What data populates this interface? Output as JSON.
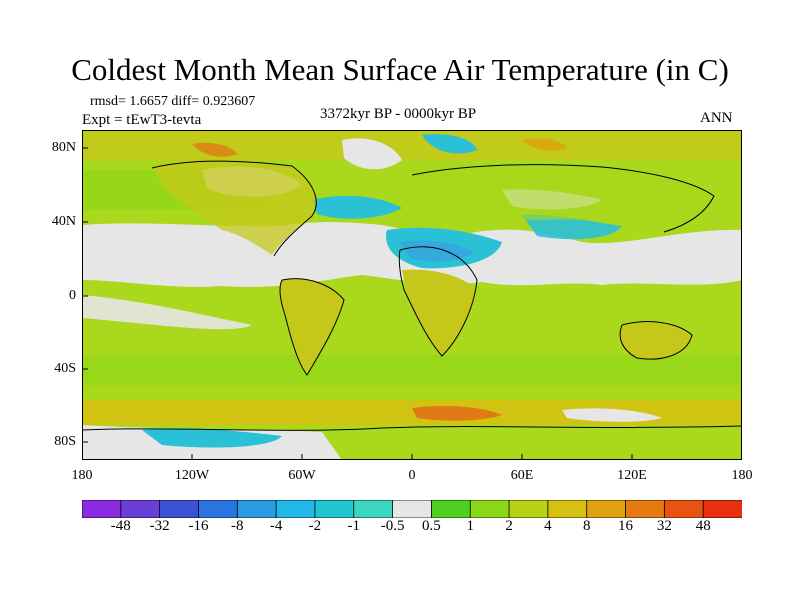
{
  "title": "Coldest Month Mean Surface Air Temperature (in C)",
  "stats": "rmsd= 1.6657 diff= 0.923607",
  "experiment": "Expt = tEwT3-tevta",
  "period": "3372kyr BP - 0000kyr BP",
  "season": "ANN",
  "lat_labels": [
    "80N",
    "40N",
    "0",
    "40S",
    "80S"
  ],
  "lon_labels": [
    "180",
    "120W",
    "60W",
    "0",
    "60E",
    "120E",
    "180"
  ],
  "colorbar": {
    "labels": [
      "-48",
      "-32",
      "-16",
      "-8",
      "-4",
      "-2",
      "-1",
      "-0.5",
      "0.5",
      "1",
      "2",
      "4",
      "8",
      "16",
      "32",
      "48"
    ],
    "colors": [
      "#8a2be2",
      "#6a3fd8",
      "#3c52d6",
      "#2c74e0",
      "#2a9ce6",
      "#22b8e8",
      "#22c6d0",
      "#3cd6c0",
      "#e6e6e6",
      "#4fd020",
      "#8ad818",
      "#b8d214",
      "#d8c010",
      "#e0a010",
      "#e47a10",
      "#e85410",
      "#e83010"
    ]
  },
  "colors": {
    "warm_ocean": "#a9d81c",
    "warm_land": "#c5c81a",
    "near_zero": "#e6e6e6",
    "cool": "#2ac0d6",
    "cold": "#3a9fe0",
    "hot": "#e07a14"
  }
}
